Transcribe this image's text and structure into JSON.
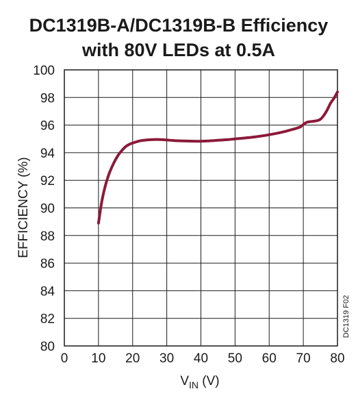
{
  "chart_data": {
    "type": "line",
    "title_lines": [
      "DC1319B-A/DC1319B-B Efficiency",
      "with 80V LEDs at 0.5A"
    ],
    "xlabel": {
      "main": "V",
      "sub": "IN",
      "unit": " (V)"
    },
    "ylabel": "EFFICIENCY (%)",
    "xlim": [
      0,
      80
    ],
    "ylim": [
      80,
      100
    ],
    "xticks": [
      0,
      10,
      20,
      30,
      40,
      50,
      60,
      70,
      80
    ],
    "yticks": [
      80,
      82,
      84,
      86,
      88,
      90,
      92,
      94,
      96,
      98,
      100
    ],
    "grid": true,
    "series": [
      {
        "color": "#8b1a3a",
        "x": [
          10,
          11,
          12,
          13,
          14,
          15,
          16,
          17,
          18,
          19,
          20,
          22,
          24,
          26,
          28,
          30,
          32,
          35,
          38,
          40,
          42,
          45,
          48,
          50,
          53,
          56,
          60,
          64,
          67,
          69,
          70,
          71,
          72,
          73,
          74,
          75,
          76,
          77,
          78,
          79,
          80
        ],
        "y": [
          88.9,
          90.5,
          91.6,
          92.4,
          93.0,
          93.5,
          93.9,
          94.2,
          94.45,
          94.6,
          94.7,
          94.85,
          94.92,
          94.95,
          94.95,
          94.92,
          94.88,
          94.85,
          94.83,
          94.83,
          94.85,
          94.9,
          94.95,
          95.0,
          95.07,
          95.15,
          95.3,
          95.5,
          95.7,
          95.85,
          96.05,
          96.2,
          96.25,
          96.28,
          96.32,
          96.42,
          96.7,
          97.1,
          97.6,
          97.95,
          98.4
        ]
      }
    ]
  },
  "figure_id": "DC1319 F02"
}
